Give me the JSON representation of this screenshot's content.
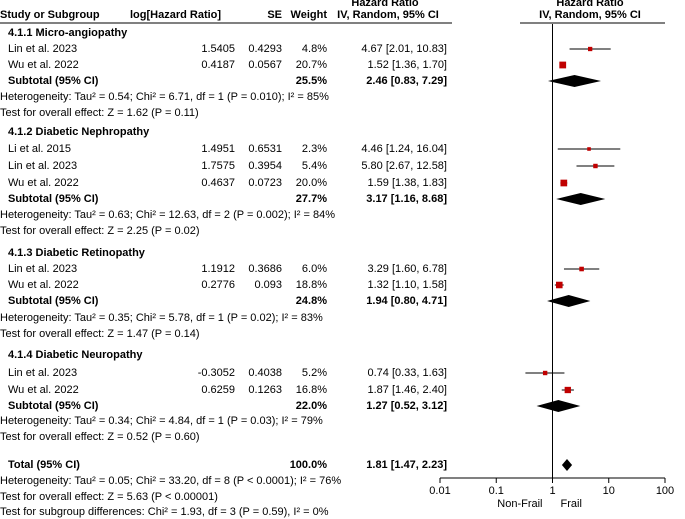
{
  "chart_data": {
    "type": "forest",
    "header": {
      "col_study": "Study or Subgroup",
      "col_loghr": "log[Hazard Ratio]",
      "col_se": "SE",
      "col_weight": "Weight",
      "col_ci_title": "Hazard Ratio",
      "col_ci_sub": "IV, Random, 95% CI",
      "plot_title": "Hazard Ratio",
      "plot_sub": "IV, Random, 95% CI"
    },
    "axis": {
      "scale": "log",
      "range": [
        0.01,
        100
      ],
      "ticks": [
        {
          "value": 0.01,
          "label": "0.01"
        },
        {
          "value": 0.1,
          "label": "0.1"
        },
        {
          "value": 1,
          "label": "1"
        },
        {
          "value": 10,
          "label": "10"
        },
        {
          "value": 100,
          "label": "100"
        }
      ],
      "left_label": "Non-Frail",
      "right_label": "Frail"
    },
    "subgroups": [
      {
        "title": "4.1.1 Micro-angiopathy",
        "studies": [
          {
            "name": "Lin et al. 2023",
            "loghr": "1.5405",
            "se": "0.4293",
            "weight": "4.8%",
            "ci_text": "4.67 [2.01, 10.83]",
            "hr": 4.67,
            "lo": 2.01,
            "hi": 10.83,
            "w": 4.8
          },
          {
            "name": "Wu et al. 2022",
            "loghr": "0.4187",
            "se": "0.0567",
            "weight": "20.7%",
            "ci_text": "1.52 [1.36, 1.70]",
            "hr": 1.52,
            "lo": 1.36,
            "hi": 1.7,
            "w": 20.7
          }
        ],
        "subtotal": {
          "label": "Subtotal (95% CI)",
          "weight": "25.5%",
          "ci_text": "2.46 [0.83, 7.29]",
          "hr": 2.46,
          "lo": 0.83,
          "hi": 7.29
        },
        "heterogeneity": "Heterogeneity: Tau² = 0.54; Chi² = 6.71, df = 1 (P = 0.010); I² = 85%",
        "overall": "Test for overall effect: Z = 1.62 (P = 0.11)"
      },
      {
        "title": "4.1.2 Diabetic Nephropathy",
        "studies": [
          {
            "name": "Li et al. 2015",
            "loghr": "1.4951",
            "se": "0.6531",
            "weight": "2.3%",
            "ci_text": "4.46 [1.24, 16.04]",
            "hr": 4.46,
            "lo": 1.24,
            "hi": 16.04,
            "w": 2.3
          },
          {
            "name": "Lin et al. 2023",
            "loghr": "1.7575",
            "se": "0.3954",
            "weight": "5.4%",
            "ci_text": "5.80 [2.67, 12.58]",
            "hr": 5.8,
            "lo": 2.67,
            "hi": 12.58,
            "w": 5.4
          },
          {
            "name": "Wu et al. 2022",
            "loghr": "0.4637",
            "se": "0.0723",
            "weight": "20.0%",
            "ci_text": "1.59 [1.38, 1.83]",
            "hr": 1.59,
            "lo": 1.38,
            "hi": 1.83,
            "w": 20.0
          }
        ],
        "subtotal": {
          "label": "Subtotal (95% CI)",
          "weight": "27.7%",
          "ci_text": "3.17 [1.16, 8.68]",
          "hr": 3.17,
          "lo": 1.16,
          "hi": 8.68
        },
        "heterogeneity": "Heterogeneity: Tau² = 0.63; Chi² = 12.63, df = 2 (P = 0.002); I² = 84%",
        "overall": "Test for overall effect: Z = 2.25 (P = 0.02)"
      },
      {
        "title": "4.1.3 Diabetic Retinopathy",
        "studies": [
          {
            "name": "Lin et al. 2023",
            "loghr": "1.1912",
            "se": "0.3686",
            "weight": "6.0%",
            "ci_text": "3.29 [1.60, 6.78]",
            "hr": 3.29,
            "lo": 1.6,
            "hi": 6.78,
            "w": 6.0
          },
          {
            "name": "Wu et al. 2022",
            "loghr": "0.2776",
            "se": "0.093",
            "weight": "18.8%",
            "ci_text": "1.32 [1.10, 1.58]",
            "hr": 1.32,
            "lo": 1.1,
            "hi": 1.58,
            "w": 18.8
          }
        ],
        "subtotal": {
          "label": "Subtotal (95% CI)",
          "weight": "24.8%",
          "ci_text": "1.94 [0.80, 4.71]",
          "hr": 1.94,
          "lo": 0.8,
          "hi": 4.71
        },
        "heterogeneity": "Heterogeneity: Tau² = 0.35; Chi² = 5.78, df = 1 (P = 0.02); I² = 83%",
        "overall": "Test for overall effect: Z = 1.47 (P = 0.14)"
      },
      {
        "title": "4.1.4 Diabetic Neuropathy",
        "studies": [
          {
            "name": "Lin et al. 2023",
            "loghr": "-0.3052",
            "se": "0.4038",
            "weight": "5.2%",
            "ci_text": "0.74 [0.33, 1.63]",
            "hr": 0.74,
            "lo": 0.33,
            "hi": 1.63,
            "w": 5.2
          },
          {
            "name": "Wu et al. 2022",
            "loghr": "0.6259",
            "se": "0.1263",
            "weight": "16.8%",
            "ci_text": "1.87 [1.46, 2.40]",
            "hr": 1.87,
            "lo": 1.46,
            "hi": 2.4,
            "w": 16.8
          }
        ],
        "subtotal": {
          "label": "Subtotal (95% CI)",
          "weight": "22.0%",
          "ci_text": "1.27 [0.52, 3.12]",
          "hr": 1.27,
          "lo": 0.52,
          "hi": 3.12
        },
        "heterogeneity": "Heterogeneity: Tau² = 0.34; Chi² = 4.84, df = 1 (P = 0.03); I² = 79%",
        "overall": "Test for overall effect: Z = 0.52 (P = 0.60)"
      }
    ],
    "total": {
      "label": "Total (95% CI)",
      "weight": "100.0%",
      "ci_text": "1.81 [1.47, 2.23]",
      "hr": 1.81,
      "lo": 1.47,
      "hi": 2.23,
      "heterogeneity": "Heterogeneity: Tau² = 0.05; Chi² = 33.20, df = 8 (P < 0.0001); I² = 76%",
      "overall": "Test for overall effect: Z = 5.63 (P < 0.00001)",
      "subgroup_diff": "Test for subgroup differences: Chi² = 1.93, df = 3 (P = 0.59), I² = 0%"
    },
    "colors": {
      "study_marker": "#c00000",
      "line": "#000000",
      "diamond": "#000000"
    }
  }
}
